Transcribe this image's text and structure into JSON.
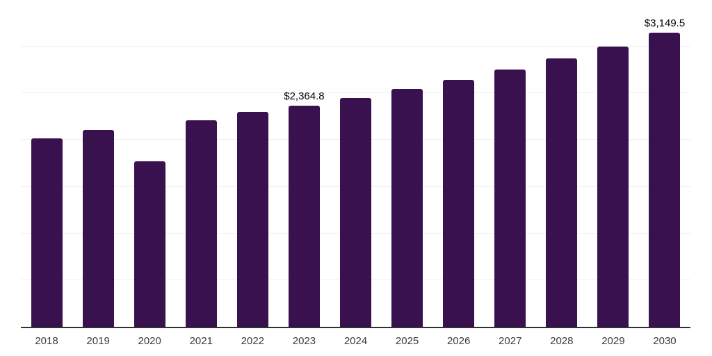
{
  "chart_data": {
    "type": "bar",
    "categories": [
      "2018",
      "2019",
      "2020",
      "2021",
      "2022",
      "2023",
      "2024",
      "2025",
      "2026",
      "2027",
      "2028",
      "2029",
      "2030"
    ],
    "values": [
      2020,
      2110,
      1770,
      2213,
      2300,
      2364.8,
      2449,
      2546,
      2647,
      2752,
      2871,
      3000,
      3149.5
    ],
    "value_labels": [
      "",
      "",
      "",
      "",
      "",
      "$2,364.8",
      "",
      "",
      "",
      "",
      "",
      "",
      "$3,149.5"
    ],
    "ylim": [
      0,
      3500
    ],
    "gridline_step": 500,
    "grid": "horizontal-only",
    "legend": "none",
    "y_axis_tick_labels_visible": false,
    "bar_color": "#38114e",
    "axis_color": "#313135",
    "gridline_color": "#efefef",
    "tick_label_color": "#3a3a3a",
    "data_label_color": "#000000"
  }
}
